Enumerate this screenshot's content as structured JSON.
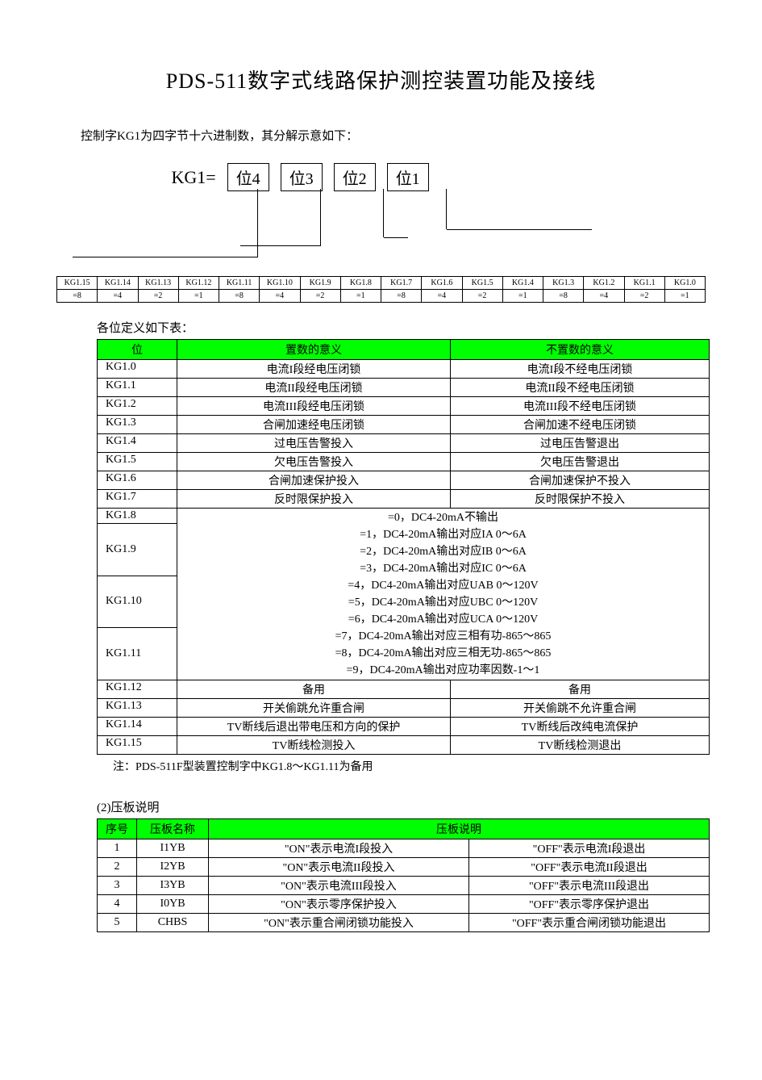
{
  "title": "PDS-511数字式线路保护测控装置功能及接线",
  "intro": "控制字KG1为四字节十六进制数，其分解示意如下：",
  "kg_label": "KG1=",
  "kg_boxes": [
    "位4",
    "位3",
    "位2",
    "位1"
  ],
  "bits_row1": [
    "KG1.15",
    "KG1.14",
    "KG1.13",
    "KG1.12",
    "KG1.11",
    "KG1.10",
    "KG1.9",
    "KG1.8",
    "KG1.7",
    "KG1.6",
    "KG1.5",
    "KG1.4",
    "KG1.3",
    "KG1.2",
    "KG1.1",
    "KG1.0"
  ],
  "bits_row2": [
    "=8",
    "=4",
    "=2",
    "=1",
    "=8",
    "=4",
    "=2",
    "=1",
    "=8",
    "=4",
    "=2",
    "=1",
    "=8",
    "=4",
    "=2",
    "=1"
  ],
  "table1_caption": "各位定义如下表：",
  "table1_headers": [
    "位",
    "置数的意义",
    "不置数的意义"
  ],
  "table1_rows_top": [
    {
      "k": "KG1.0",
      "a": "电流I段经电压闭锁",
      "b": "电流I段不经电压闭锁"
    },
    {
      "k": "KG1.1",
      "a": "电流II段经电压闭锁",
      "b": "电流II段不经电压闭锁"
    },
    {
      "k": "KG1.2",
      "a": "电流III段经电压闭锁",
      "b": "电流III段不经电压闭锁"
    },
    {
      "k": "KG1.3",
      "a": "合闸加速经电压闭锁",
      "b": "合闸加速不经电压闭锁"
    },
    {
      "k": "KG1.4",
      "a": "过电压告警投入",
      "b": "过电压告警退出"
    },
    {
      "k": "KG1.5",
      "a": "欠电压告警投入",
      "b": "欠电压告警退出"
    },
    {
      "k": "KG1.6",
      "a": "合闸加速保护投入",
      "b": "合闸加速保护不投入"
    },
    {
      "k": "KG1.7",
      "a": "反时限保护投入",
      "b": "反时限保护不投入"
    }
  ],
  "table1_merged": [
    {
      "k": "KG1.8",
      "lines": [
        "=0，DC4-20mA不输出",
        "=1，DC4-20mA输出对应IA 0～6A"
      ]
    },
    {
      "k": "KG1.9",
      "lines": [
        "=2，DC4-20mA输出对应IB 0～6A",
        "=3，DC4-20mA输出对应IC 0～6A",
        "=4，DC4-20mA输出对应UAB 0～120V"
      ]
    },
    {
      "k": "KG1.10",
      "lines": [
        "=5，DC4-20mA输出对应UBC 0～120V",
        "=6，DC4-20mA输出对应UCA 0～120V",
        "=7，DC4-20mA输出对应三相有功-865～865"
      ]
    },
    {
      "k": "KG1.11",
      "lines": [
        "=8，DC4-20mA输出对应三相无功-865～865",
        "=9，DC4-20mA输出对应功率因数-1～1",
        ""
      ]
    }
  ],
  "table1_rows_bottom": [
    {
      "k": "KG1.12",
      "a": "备用",
      "b": "备用"
    },
    {
      "k": "KG1.13",
      "a": "开关偷跳允许重合闸",
      "b": "开关偷跳不允许重合闸"
    },
    {
      "k": "KG1.14",
      "a": "TV断线后退出带电压和方向的保护",
      "b": "TV断线后改纯电流保护"
    },
    {
      "k": "KG1.15",
      "a": "TV断线检测投入",
      "b": "TV断线检测退出"
    }
  ],
  "note": "注：PDS-511F型装置控制字中KG1.8～KG1.11为备用",
  "section2_label": "(2)压板说明",
  "table2_headers": [
    "序号",
    "压板名称",
    "压板说明"
  ],
  "table2_rows": [
    {
      "n": "1",
      "name": "I1YB",
      "on": "\"ON\"表示电流I段投入",
      "off": "\"OFF\"表示电流I段退出"
    },
    {
      "n": "2",
      "name": "I2YB",
      "on": "\"ON\"表示电流II段投入",
      "off": "\"OFF\"表示电流II段退出"
    },
    {
      "n": "3",
      "name": "I3YB",
      "on": "\"ON\"表示电流III段投入",
      "off": "\"OFF\"表示电流III段退出"
    },
    {
      "n": "4",
      "name": "I0YB",
      "on": "\"ON\"表示零序保护投入",
      "off": "\"OFF\"表示零序保护退出"
    },
    {
      "n": "5",
      "name": "CHBS",
      "on": "\"ON\"表示重合闸闭锁功能投入",
      "off": "\"OFF\"表示重合闸闭锁功能退出"
    }
  ],
  "colors": {
    "header_bg": "#00ff00",
    "border": "#000000",
    "text": "#000000",
    "background": "#ffffff"
  }
}
